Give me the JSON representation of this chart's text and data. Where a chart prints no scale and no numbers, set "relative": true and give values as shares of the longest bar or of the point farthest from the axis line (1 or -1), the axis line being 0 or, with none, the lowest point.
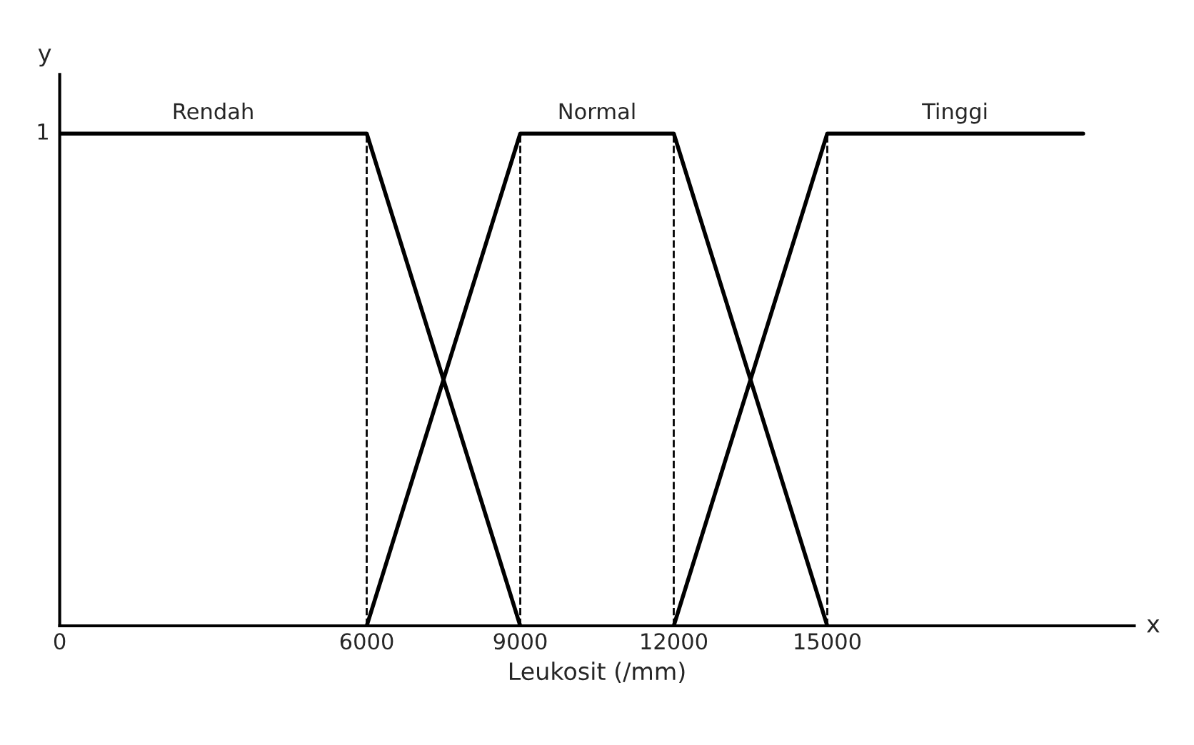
{
  "chart_data": {
    "type": "line",
    "xlabel": "Leukosit (/mm)",
    "annotations": [
      "y",
      "x",
      {
        "text": "1",
        "x": 0,
        "y": 1
      }
    ],
    "relative": true,
    "series": [
      {
        "name": "Rendah",
        "color": "#000000",
        "x": [
          0,
          6000,
          9000
        ],
        "values": [
          1,
          1,
          0
        ]
      },
      {
        "name": "Normal",
        "color": "#000000",
        "x": [
          6000,
          9000,
          12000,
          15000
        ],
        "values": [
          0,
          1,
          1,
          0
        ]
      },
      {
        "name": "Tinggi",
        "color": "#000000",
        "x": [
          12000,
          15000,
          20000
        ],
        "values": [
          0,
          1,
          1
        ]
      }
    ],
    "xlim": [
      0,
      21000
    ],
    "xticks": [
      0,
      6000,
      9000,
      12000,
      15000
    ],
    "ref_lines": [
      {
        "axis": "x",
        "value": 6000,
        "line_style": "dashed",
        "color": "#000000"
      },
      {
        "axis": "x",
        "value": 9000,
        "line_style": "dashed",
        "color": "#000000"
      },
      {
        "axis": "x",
        "value": 12000,
        "line_style": "dashed",
        "color": "#000000"
      },
      {
        "axis": "x",
        "value": 15000,
        "line_style": "dashed",
        "color": "#000000"
      }
    ],
    "grid": false,
    "legend": false,
    "line_style": "solid",
    "marker": "none"
  }
}
